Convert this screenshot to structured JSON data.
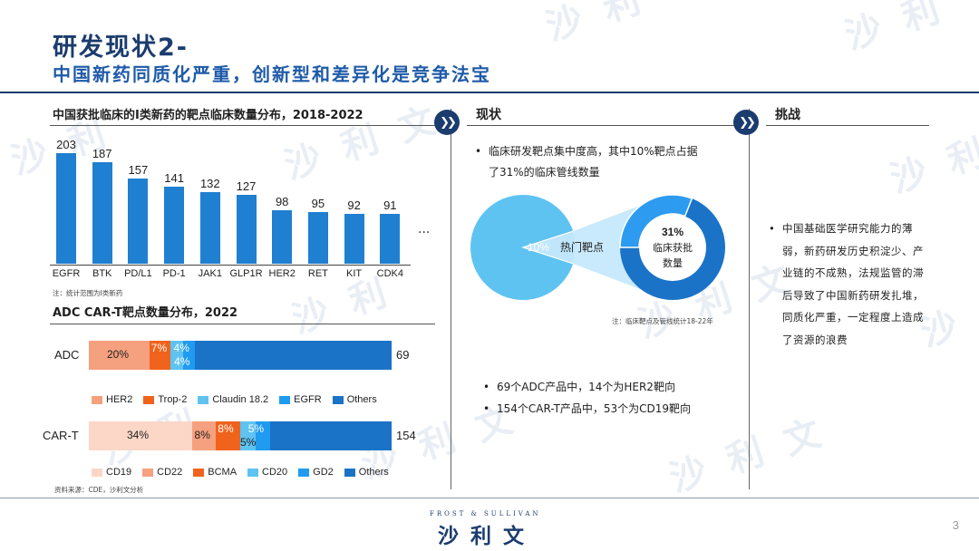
{
  "title": {
    "main": "研发现状2-",
    "subtitle": "中国新药同质化严重，创新型和差异化是竞争法宝"
  },
  "bar_section": {
    "title": "中国获批临床的I类新药的靶点临床数量分布，2018-2022",
    "ellipsis": "···",
    "note": "注：统计范围为I类新药"
  },
  "adc_section": {
    "title": "ADC CAR-T靶点数量分布，2022"
  },
  "chart_data": [
    {
      "type": "bar",
      "title": "中国获批临床的I类新药的靶点临床数量分布，2018-2022",
      "categories": [
        "EGFR",
        "BTK",
        "PD/L1",
        "PD-1",
        "JAK1",
        "GLP1R",
        "HER2",
        "RET",
        "KIT",
        "CDK4"
      ],
      "values": [
        203,
        187,
        157,
        141,
        132,
        127,
        98,
        95,
        92,
        91
      ],
      "ylim": [
        0,
        203
      ],
      "grid": false
    },
    {
      "type": "bar",
      "stacked": true,
      "orientation": "horizontal",
      "categories": [
        "ADC"
      ],
      "total": 69,
      "series": [
        {
          "name": "HER2",
          "value_pct": 20,
          "label": "20%",
          "color": "#f5a07f"
        },
        {
          "name": "Trop-2",
          "value_pct": 7,
          "label": "7%",
          "color": "#f0631c"
        },
        {
          "name": "Claudin 18.2",
          "value_pct": 4,
          "label": "4%",
          "color": "#5ec3f1"
        },
        {
          "name": "EGFR",
          "value_pct": 4,
          "label": "4%",
          "color": "#1f9bf0"
        },
        {
          "name": "Others",
          "value_pct": 65,
          "label": "",
          "color": "#1a73c7"
        }
      ]
    },
    {
      "type": "bar",
      "stacked": true,
      "orientation": "horizontal",
      "categories": [
        "CAR-T"
      ],
      "total": 154,
      "series": [
        {
          "name": "CD19",
          "value_pct": 34,
          "label": "34%",
          "color": "#fcd6c6"
        },
        {
          "name": "CD22",
          "value_pct": 8,
          "label": "8%",
          "color": "#f5a07f"
        },
        {
          "name": "BCMA",
          "value_pct": 8,
          "label": "8%",
          "color": "#f0631c"
        },
        {
          "name": "CD20",
          "value_pct": 5,
          "label": "5%",
          "color": "#5ec3f1"
        },
        {
          "name": "GD2",
          "value_pct": 5,
          "label": "5%",
          "color": "#1f9bf0"
        },
        {
          "name": "Others",
          "value_pct": 40,
          "label": "",
          "color": "#1a73c7"
        }
      ]
    },
    {
      "type": "pie",
      "slices": [
        {
          "label": "10%",
          "value": 10,
          "color": "#bfe6fb"
        },
        {
          "label": "",
          "value": 90,
          "color": "#5ec3f1"
        }
      ],
      "callout": "热门靶点"
    },
    {
      "type": "pie",
      "style": "donut",
      "slices": [
        {
          "label": "31%",
          "value": 31,
          "color": "#2d9bef"
        },
        {
          "label": "",
          "value": 69,
          "color": "#1a73c7"
        }
      ],
      "center_text": [
        "31%",
        "临床获批",
        "数量"
      ]
    }
  ],
  "legend_adc": [
    "HER2",
    "Trop-2",
    "Claudin 18.2",
    "EGFR",
    "Others"
  ],
  "legend_cart": [
    "CD19",
    "CD22",
    "BCMA",
    "CD20",
    "GD2",
    "Others"
  ],
  "source": "资料来源：CDE，沙利文分析",
  "status": {
    "header": "现状",
    "bullet1": "临床研发靶点集中度高，其中10%靶点占据了31%的临床管线数量",
    "donut_note": "注：临床靶点及管线统计18-22年",
    "bullet2": "69个ADC产品中，14个为HER2靶向",
    "bullet3": "154个CAR-T产品中，53个为CD19靶向"
  },
  "challenge": {
    "header": "挑战",
    "bullet": "中国基础医学研究能力的薄弱，新药研发历史积淀少、产业链的不成熟，法规监管的滞后导致了中国新药研发扎堆，同质化严重，一定程度上造成了资源的浪费"
  },
  "footer": {
    "logo_en": "FROST & SULLIVAN",
    "logo_cn": "沙利文",
    "page": "3"
  },
  "colors": {
    "navy": "#1b3c6e",
    "bar_blue": "#1f7fd1",
    "accent_blue": "#1e5aa8"
  }
}
